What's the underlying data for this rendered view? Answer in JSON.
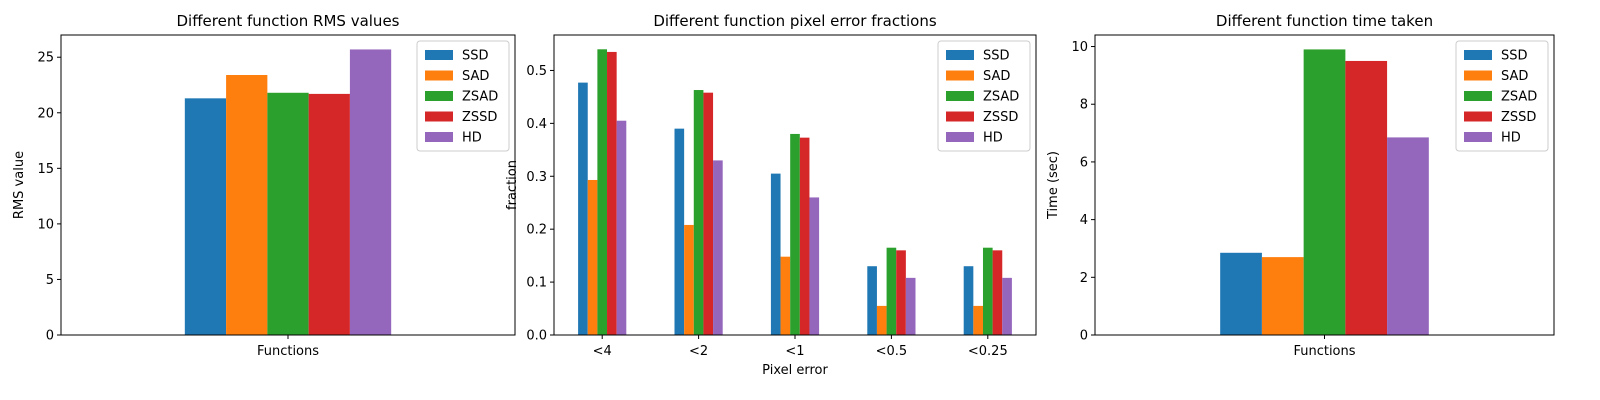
{
  "series_names": [
    "SSD",
    "SAD",
    "ZSAD",
    "ZSSD",
    "HD"
  ],
  "colors": {
    "SSD": "#1f77b4",
    "SAD": "#ff7f0e",
    "ZSAD": "#2ca02c",
    "ZSSD": "#d62728",
    "HD": "#9467bd"
  },
  "chart_data": [
    {
      "type": "bar",
      "title": "Different function RMS values",
      "xlabel": "",
      "ylabel": "RMS value",
      "categories": [
        "Functions"
      ],
      "series": [
        {
          "name": "SSD",
          "values": [
            21.3
          ]
        },
        {
          "name": "SAD",
          "values": [
            23.4
          ]
        },
        {
          "name": "ZSAD",
          "values": [
            21.8
          ]
        },
        {
          "name": "ZSSD",
          "values": [
            21.7
          ]
        },
        {
          "name": "HD",
          "values": [
            25.7
          ]
        }
      ],
      "ylim": [
        0,
        27
      ],
      "yticks": [
        0,
        5,
        10,
        15,
        20,
        25
      ],
      "ytick_labels": [
        "0",
        "5",
        "10",
        "15",
        "20",
        "25"
      ],
      "legend": "top-right",
      "grid": false
    },
    {
      "type": "bar",
      "title": "Different function pixel error fractions",
      "xlabel": "Pixel error",
      "ylabel": "fraction",
      "categories": [
        "<4",
        "<2",
        "<1",
        "<0.5",
        "<0.25"
      ],
      "series": [
        {
          "name": "SSD",
          "values": [
            0.477,
            0.39,
            0.305,
            0.13,
            0.13
          ]
        },
        {
          "name": "SAD",
          "values": [
            0.293,
            0.208,
            0.148,
            0.055,
            0.055
          ]
        },
        {
          "name": "ZSAD",
          "values": [
            0.54,
            0.463,
            0.38,
            0.165,
            0.165
          ]
        },
        {
          "name": "ZSSD",
          "values": [
            0.535,
            0.458,
            0.373,
            0.16,
            0.16
          ]
        },
        {
          "name": "HD",
          "values": [
            0.405,
            0.33,
            0.26,
            0.108,
            0.108
          ]
        }
      ],
      "ylim": [
        0,
        0.567
      ],
      "yticks": [
        0,
        0.1,
        0.2,
        0.3,
        0.4,
        0.5
      ],
      "ytick_labels": [
        "0.0",
        "0.1",
        "0.2",
        "0.3",
        "0.4",
        "0.5"
      ],
      "legend": "top-right",
      "grid": false
    },
    {
      "type": "bar",
      "title": "Different function time taken",
      "xlabel": "",
      "ylabel": "Time (sec)",
      "categories": [
        "Functions"
      ],
      "series": [
        {
          "name": "SSD",
          "values": [
            2.85
          ]
        },
        {
          "name": "SAD",
          "values": [
            2.7
          ]
        },
        {
          "name": "ZSAD",
          "values": [
            9.9
          ]
        },
        {
          "name": "ZSSD",
          "values": [
            9.5
          ]
        },
        {
          "name": "HD",
          "values": [
            6.85
          ]
        }
      ],
      "ylim": [
        0,
        10.4
      ],
      "yticks": [
        0,
        2,
        4,
        6,
        8,
        10
      ],
      "ytick_labels": [
        "0",
        "2",
        "4",
        "6",
        "8",
        "10"
      ],
      "legend": "top-right",
      "grid": false
    }
  ]
}
